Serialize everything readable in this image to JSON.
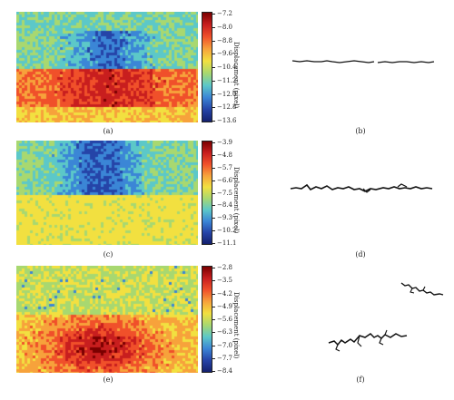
{
  "panels": [
    {
      "id": "a",
      "caption": "(a)",
      "colorbar_label": "Displacement (pixel)",
      "ticks": [
        "−7.2",
        "−8.0",
        "−8.8",
        "−9.6",
        "−10.4",
        "−11.2",
        "−12.0",
        "−12.8",
        "−13.6"
      ]
    },
    {
      "id": "b",
      "caption": "(b)"
    },
    {
      "id": "c",
      "caption": "(c)",
      "colorbar_label": "Displacement (pixel)",
      "ticks": [
        "−3.9",
        "−4.8",
        "−5.7",
        "−6.6",
        "−7.5",
        "−8.4",
        "−9.3",
        "−10.2",
        "−11.1"
      ]
    },
    {
      "id": "d",
      "caption": "(d)"
    },
    {
      "id": "e",
      "caption": "(e)",
      "colorbar_label": "Displacement (pixel)",
      "ticks": [
        "−2.8",
        "−3.5",
        "−4.2",
        "−4.9",
        "−5.6",
        "−6.3",
        "−7.0",
        "−7.7",
        "−8.4"
      ]
    },
    {
      "id": "f",
      "caption": "(f)"
    }
  ],
  "colormap": [
    "#7a0000",
    "#c81e1e",
    "#f0502a",
    "#f7a23b",
    "#f2e040",
    "#a8d870",
    "#5cc8c8",
    "#3b86d6",
    "#2544a8",
    "#14206e"
  ]
}
